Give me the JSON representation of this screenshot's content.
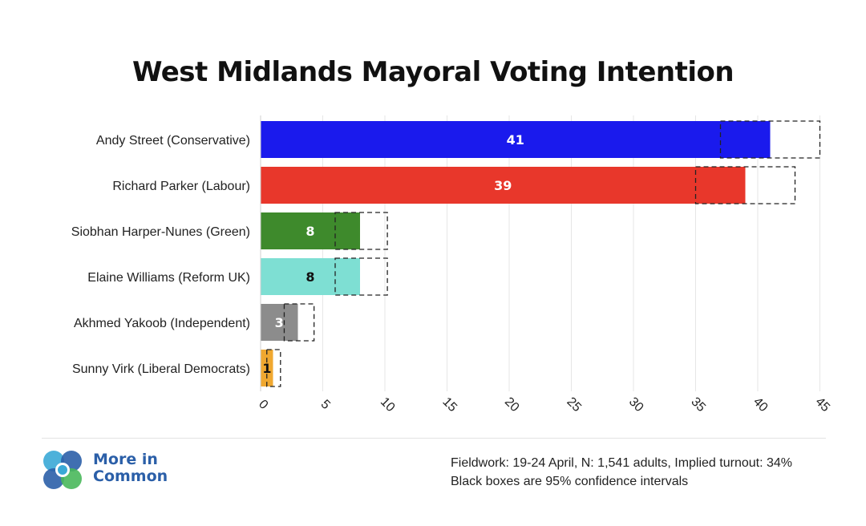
{
  "title": "West Midlands Mayoral Voting Intention",
  "chart_data": {
    "type": "bar",
    "orientation": "horizontal",
    "title": "West Midlands Mayoral Voting Intention",
    "categories": [
      "Andy Street (Conservative)",
      "Richard Parker (Labour)",
      "Siobhan Harper-Nunes (Green)",
      "Elaine Williams (Reform UK)",
      "Akhmed Yakoob (Independent)",
      "Sunny Virk (Liberal Democrats)"
    ],
    "values": [
      41,
      39,
      8,
      8,
      3,
      1
    ],
    "confidence_intervals": [
      [
        37,
        45
      ],
      [
        35,
        43
      ],
      [
        6,
        10.2
      ],
      [
        6,
        10.2
      ],
      [
        1.9,
        4.3
      ],
      [
        0.5,
        1.6
      ]
    ],
    "colors": [
      "#1a1aed",
      "#e8372b",
      "#3e8a2c",
      "#7edfd3",
      "#8c8c8c",
      "#f0a830"
    ],
    "label_colors": [
      "#ffffff",
      "#ffffff",
      "#ffffff",
      "#111111",
      "#ffffff",
      "#111111"
    ],
    "x_ticks": [
      0,
      5,
      10,
      15,
      20,
      25,
      30,
      35,
      40,
      45
    ],
    "xlim": [
      0,
      45
    ],
    "grid": "vertical",
    "xlabel": "",
    "ylabel": ""
  },
  "logo": {
    "line1": "More in",
    "line2": "Common",
    "color": "#2b5fa8"
  },
  "notes": {
    "line1": "Fieldwork: 19-24 April, N: 1,541 adults, Implied turnout: 34%",
    "line2": "Black boxes are 95% confidence intervals"
  }
}
